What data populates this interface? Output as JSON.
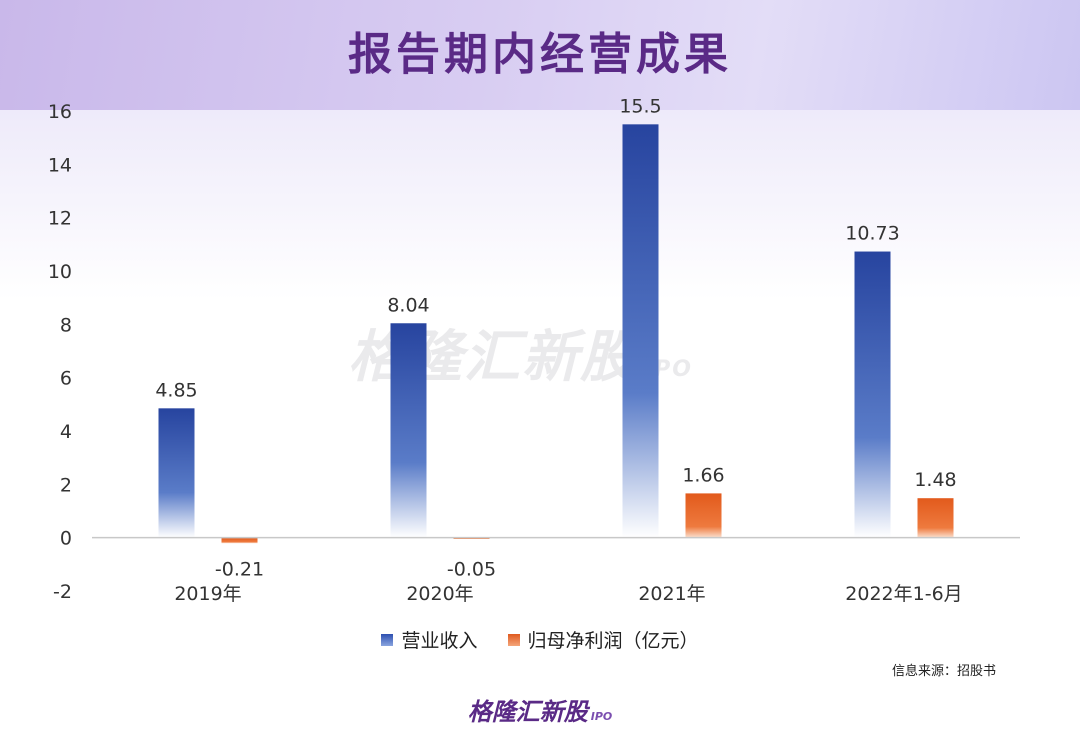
{
  "title": "报告期内经营成果",
  "watermark": {
    "main": "格隆汇新股",
    "sub": "IPO"
  },
  "footer": {
    "main": "格隆汇新股",
    "sub": "IPO"
  },
  "source": "信息来源：招股书",
  "legend_suffix": "（亿元）",
  "colors": {
    "revenue": "#2d4fb0",
    "net_profit": "#e8621f",
    "title": "#5a2a86"
  },
  "chart_data": {
    "type": "bar",
    "categories": [
      "2019年",
      "2020年",
      "2021年",
      "2022年1-6月"
    ],
    "series": [
      {
        "name": "营业收入",
        "values": [
          4.85,
          8.04,
          15.5,
          10.73
        ]
      },
      {
        "name": "归母净利润",
        "values": [
          -0.21,
          -0.05,
          1.66,
          1.48
        ]
      }
    ],
    "data_labels": [
      [
        "4.85",
        "8.04",
        "15.5",
        "10.73"
      ],
      [
        "-0.21",
        "-0.05",
        "1.66",
        "1.48"
      ]
    ],
    "ylim": [
      -2,
      16
    ],
    "yticks": [
      -2,
      0,
      2,
      4,
      6,
      8,
      10,
      12,
      14,
      16
    ],
    "grid": false,
    "legend_position": "bottom"
  }
}
